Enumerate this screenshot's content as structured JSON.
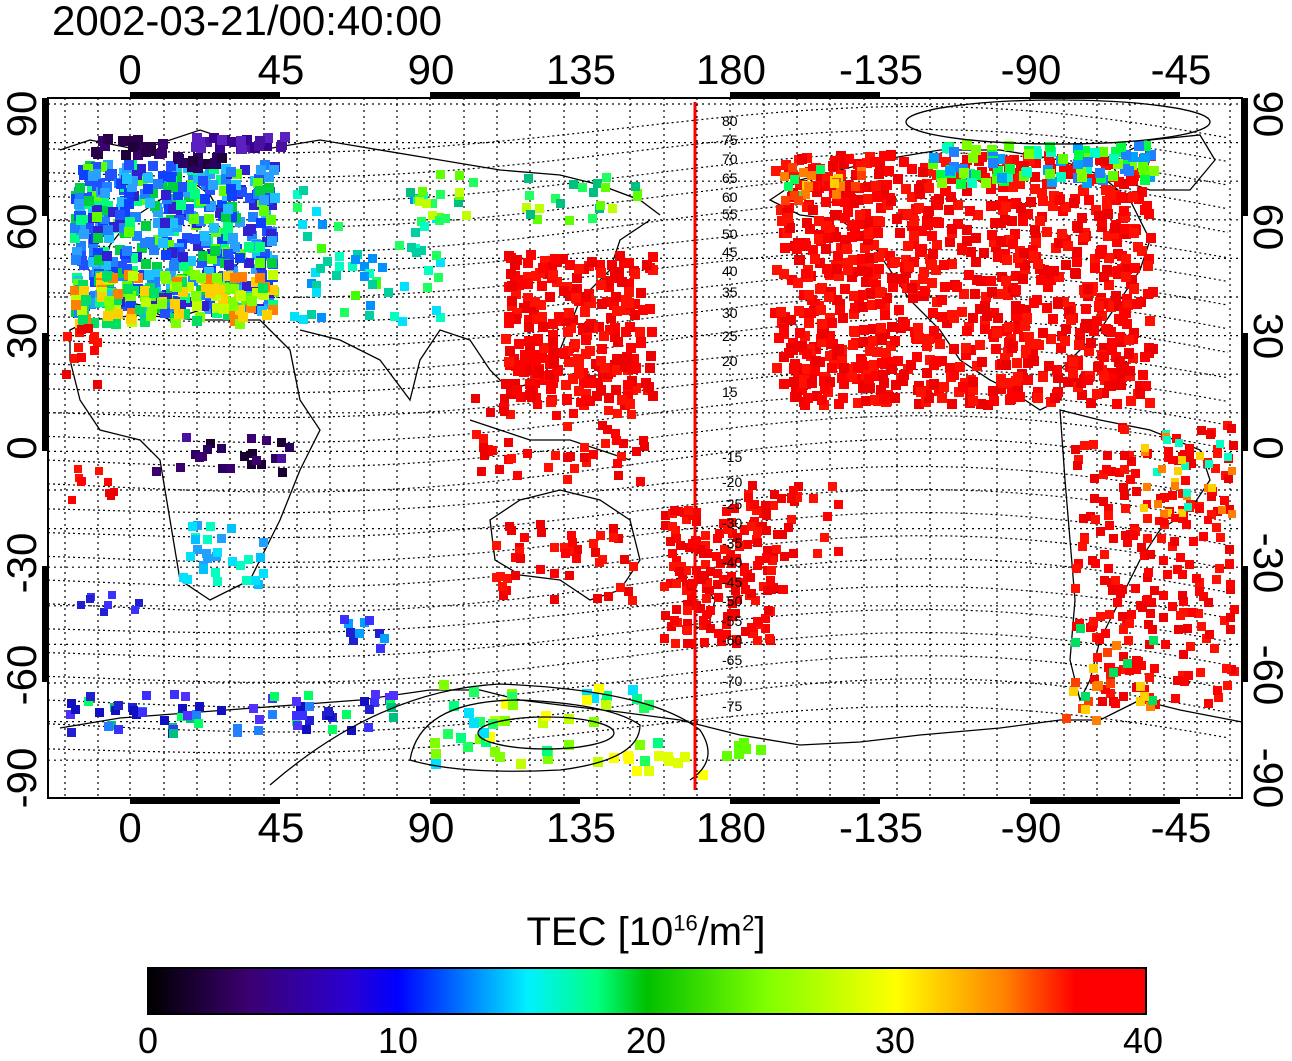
{
  "timestamp": "2002-03-21/00:40:00",
  "map": {
    "lon_ticks": [
      "0",
      "45",
      "90",
      "135",
      "180",
      "-135",
      "-90",
      "-45"
    ],
    "lat_ticks_left": [
      "90",
      "60",
      "30",
      "0",
      "-30",
      "-60",
      "-90"
    ],
    "lat_ticks_right": [
      "90",
      "60",
      "30",
      "0",
      "-30",
      "-60",
      "-90"
    ],
    "magnetic_latitude_labels": [
      "80",
      "75",
      "70",
      "65",
      "60",
      "55",
      "50",
      "45",
      "40",
      "35",
      "30",
      "25",
      "20",
      "15",
      "-15",
      "-20",
      "-25",
      "-30",
      "-35",
      "-40",
      "-45",
      "-50",
      "-55",
      "-60",
      "-65",
      "-70",
      "-75"
    ],
    "meridian_line_color": "#ff0000",
    "grid": "dotted"
  },
  "colorbar": {
    "title": "TEC  [10",
    "title_exp": "16",
    "title_unit": "/m",
    "title_unit_exp": "2",
    "title_close": "]",
    "ticks": [
      "0",
      "10",
      "20",
      "30",
      "40"
    ],
    "range": [
      0,
      40
    ],
    "colors": [
      "#000000",
      "#0000ff",
      "#00ffff",
      "#00c000",
      "#ffff00",
      "#ff0000"
    ]
  }
}
